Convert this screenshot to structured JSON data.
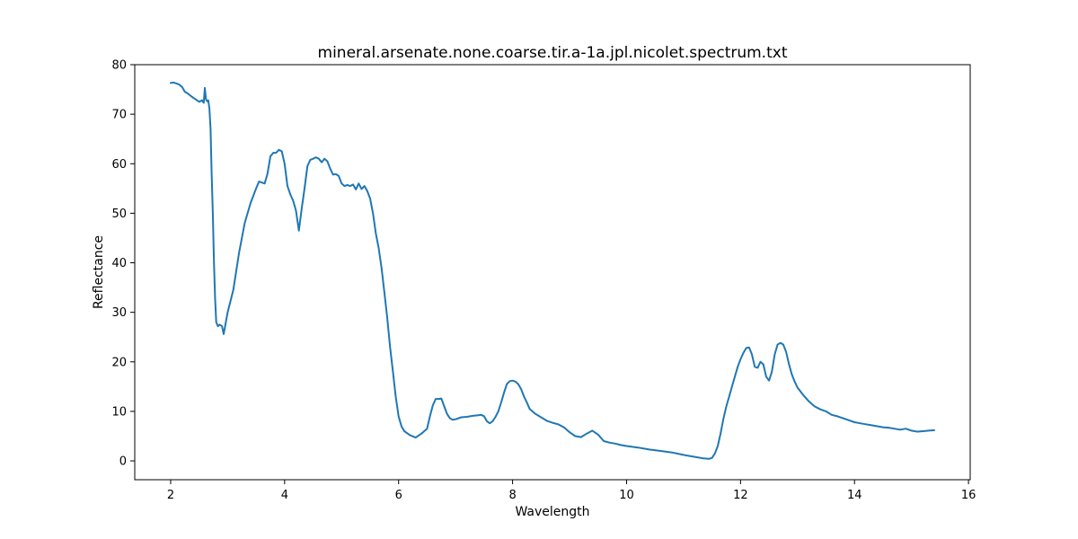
{
  "chart_data": {
    "type": "line",
    "title": "mineral.arsenate.none.coarse.tir.a-1a.jpl.nicolet.spectrum.txt",
    "xlabel": "Wavelength",
    "ylabel": "Reflectance",
    "xlim": [
      1.37,
      16.03
    ],
    "ylim": [
      -3.8,
      80.0
    ],
    "xticks": [
      2,
      4,
      6,
      8,
      10,
      12,
      14,
      16
    ],
    "yticks": [
      0,
      10,
      20,
      30,
      40,
      50,
      60,
      70,
      80
    ],
    "grid": false,
    "series": [
      {
        "color": "#1f77b4",
        "x": [
          2.0,
          2.05,
          2.1,
          2.15,
          2.2,
          2.25,
          2.3,
          2.35,
          2.4,
          2.45,
          2.5,
          2.55,
          2.58,
          2.6,
          2.62,
          2.64,
          2.66,
          2.68,
          2.7,
          2.72,
          2.74,
          2.76,
          2.78,
          2.8,
          2.83,
          2.86,
          2.9,
          2.93,
          2.96,
          3.0,
          3.1,
          3.2,
          3.3,
          3.4,
          3.5,
          3.55,
          3.6,
          3.65,
          3.7,
          3.75,
          3.8,
          3.85,
          3.9,
          3.95,
          4.0,
          4.05,
          4.1,
          4.15,
          4.2,
          4.25,
          4.3,
          4.35,
          4.4,
          4.45,
          4.5,
          4.55,
          4.6,
          4.65,
          4.7,
          4.75,
          4.8,
          4.85,
          4.9,
          4.95,
          5.0,
          5.05,
          5.1,
          5.15,
          5.2,
          5.25,
          5.3,
          5.35,
          5.4,
          5.45,
          5.5,
          5.55,
          5.6,
          5.65,
          5.7,
          5.75,
          5.8,
          5.85,
          5.9,
          5.95,
          6.0,
          6.05,
          6.1,
          6.2,
          6.3,
          6.4,
          6.5,
          6.55,
          6.6,
          6.65,
          6.7,
          6.75,
          6.8,
          6.85,
          6.9,
          6.95,
          7.0,
          7.1,
          7.2,
          7.3,
          7.4,
          7.45,
          7.5,
          7.55,
          7.6,
          7.65,
          7.7,
          7.75,
          7.8,
          7.85,
          7.9,
          7.95,
          8.0,
          8.05,
          8.1,
          8.15,
          8.2,
          8.25,
          8.3,
          8.4,
          8.5,
          8.6,
          8.7,
          8.8,
          8.9,
          9.0,
          9.1,
          9.2,
          9.3,
          9.4,
          9.5,
          9.6,
          9.7,
          9.8,
          9.9,
          10.0,
          10.2,
          10.4,
          10.6,
          10.8,
          11.0,
          11.2,
          11.35,
          11.45,
          11.5,
          11.55,
          11.6,
          11.65,
          11.7,
          11.75,
          11.8,
          11.85,
          11.9,
          11.95,
          12.0,
          12.05,
          12.1,
          12.15,
          12.2,
          12.25,
          12.3,
          12.35,
          12.4,
          12.45,
          12.5,
          12.55,
          12.6,
          12.65,
          12.7,
          12.75,
          12.8,
          12.85,
          12.9,
          12.95,
          13.0,
          13.1,
          13.2,
          13.3,
          13.4,
          13.5,
          13.6,
          13.7,
          13.8,
          13.9,
          14.0,
          14.1,
          14.2,
          14.3,
          14.4,
          14.5,
          14.6,
          14.7,
          14.8,
          14.9,
          15.0,
          15.1,
          15.2,
          15.3,
          15.4
        ],
        "y": [
          76.3,
          76.4,
          76.2,
          76.0,
          75.5,
          74.5,
          74.2,
          73.7,
          73.3,
          72.9,
          72.5,
          72.8,
          72.3,
          75.3,
          73.0,
          72.6,
          72.8,
          71.2,
          67.0,
          58.0,
          50.0,
          40.0,
          33.0,
          28.0,
          27.2,
          27.5,
          27.2,
          25.6,
          27.5,
          30.0,
          34.5,
          42.0,
          48.0,
          52.0,
          55.0,
          56.4,
          56.2,
          56.0,
          58.0,
          61.5,
          62.2,
          62.2,
          62.8,
          62.5,
          60.0,
          55.5,
          53.8,
          52.5,
          50.5,
          46.5,
          51.0,
          55.0,
          59.5,
          60.8,
          61.0,
          61.3,
          61.0,
          60.3,
          61.0,
          60.5,
          59.0,
          57.8,
          57.9,
          57.5,
          56.0,
          55.5,
          55.7,
          55.5,
          55.8,
          54.8,
          56.0,
          54.9,
          55.5,
          54.5,
          53.0,
          50.0,
          46.0,
          43.0,
          39.0,
          34.0,
          29.0,
          23.0,
          18.0,
          13.0,
          9.0,
          7.0,
          6.0,
          5.2,
          4.7,
          5.5,
          6.5,
          9.0,
          11.2,
          12.5,
          12.5,
          12.6,
          11.0,
          9.5,
          8.6,
          8.3,
          8.4,
          8.8,
          8.9,
          9.1,
          9.2,
          9.3,
          9.0,
          8.0,
          7.6,
          8.0,
          8.9,
          10.0,
          11.8,
          13.8,
          15.5,
          16.1,
          16.2,
          16.0,
          15.5,
          14.5,
          13.0,
          11.8,
          10.5,
          9.5,
          8.8,
          8.1,
          7.7,
          7.4,
          6.8,
          5.8,
          5.0,
          4.8,
          5.5,
          6.1,
          5.3,
          4.0,
          3.7,
          3.5,
          3.2,
          3.0,
          2.7,
          2.3,
          2.0,
          1.7,
          1.2,
          0.8,
          0.5,
          0.4,
          0.6,
          1.5,
          3.0,
          5.5,
          8.5,
          11.0,
          13.0,
          15.0,
          17.0,
          19.0,
          20.5,
          21.8,
          22.8,
          22.9,
          21.5,
          19.0,
          18.8,
          20.0,
          19.5,
          17.0,
          16.2,
          18.0,
          21.5,
          23.5,
          23.8,
          23.5,
          22.0,
          19.5,
          17.5,
          16.0,
          14.8,
          13.3,
          12.0,
          11.0,
          10.4,
          10.0,
          9.3,
          9.0,
          8.6,
          8.2,
          7.8,
          7.6,
          7.4,
          7.2,
          7.0,
          6.8,
          6.7,
          6.5,
          6.3,
          6.5,
          6.1,
          5.9,
          6.0,
          6.1,
          6.2
        ]
      }
    ]
  }
}
